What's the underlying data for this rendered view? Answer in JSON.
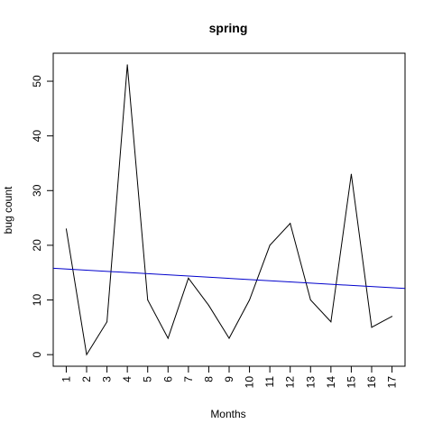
{
  "chart_data": {
    "type": "line",
    "title": "spring",
    "xlabel": "Months",
    "ylabel": "bug count",
    "x": [
      1,
      2,
      3,
      4,
      5,
      6,
      7,
      8,
      9,
      10,
      11,
      12,
      13,
      14,
      15,
      16,
      17
    ],
    "x_tick_labels": [
      "1",
      "2",
      "3",
      "4",
      "5",
      "6",
      "7",
      "8",
      "9",
      "10",
      "11",
      "12",
      "13",
      "14",
      "15",
      "16",
      "17"
    ],
    "xlim": [
      0.36,
      17.64
    ],
    "ylim": [
      -2.12,
      55.12
    ],
    "y_ticks": [
      0,
      10,
      20,
      30,
      40,
      50
    ],
    "y_tick_labels": [
      "0",
      "10",
      "20",
      "30",
      "40",
      "50"
    ],
    "series": [
      {
        "values": [
          23,
          0,
          6,
          53,
          10,
          3,
          14,
          9,
          3,
          10,
          20,
          24,
          10,
          6,
          33,
          5,
          7
        ],
        "color": "#000000"
      }
    ],
    "trend_line": {
      "color": "#0000cc",
      "points": [
        [
          0.36,
          15.8
        ],
        [
          17.64,
          12.1
        ]
      ]
    },
    "grid": false,
    "legend": "none"
  }
}
